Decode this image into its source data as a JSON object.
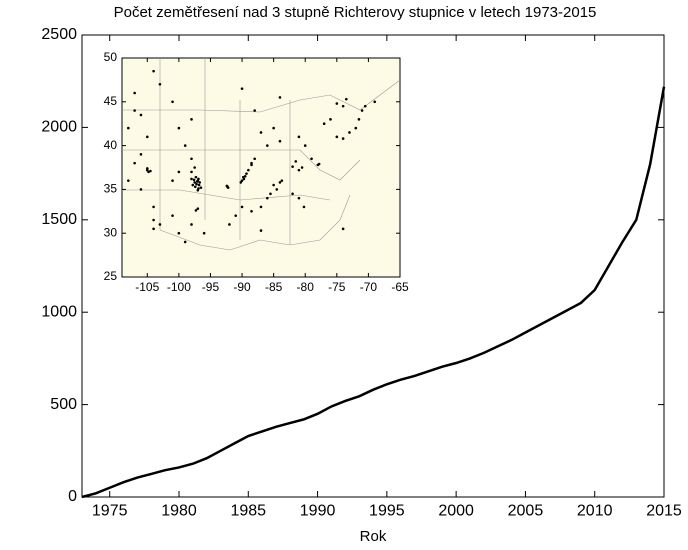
{
  "chart_data": [
    {
      "type": "line",
      "title": "Počet zemětřesení nad 3 stupně Richterovy stupnice v letech 1973-2015",
      "xlabel": "Rok",
      "color": "#000000",
      "x": [
        1973,
        1974,
        1975,
        1976,
        1977,
        1978,
        1979,
        1980,
        1981,
        1982,
        1983,
        1984,
        1985,
        1986,
        1987,
        1988,
        1989,
        1990,
        1991,
        1992,
        1993,
        1994,
        1995,
        1996,
        1997,
        1998,
        1999,
        2000,
        2001,
        2002,
        2003,
        2004,
        2005,
        2006,
        2007,
        2008,
        2009,
        2010,
        2011,
        2012,
        2013,
        2014,
        2015
      ],
      "values": [
        0,
        20,
        50,
        80,
        105,
        125,
        145,
        160,
        180,
        210,
        250,
        290,
        330,
        355,
        380,
        400,
        420,
        450,
        490,
        520,
        545,
        580,
        610,
        635,
        655,
        680,
        705,
        725,
        750,
        780,
        815,
        850,
        890,
        930,
        970,
        1010,
        1050,
        1120,
        1250,
        1380,
        1500,
        1800,
        2220
      ],
      "xlim": [
        1973,
        2015
      ],
      "xticks": [
        1975,
        1980,
        1985,
        1990,
        1995,
        2000,
        2005,
        2010,
        2015
      ],
      "ylim": [
        0,
        2500
      ],
      "yticks": [
        0,
        500,
        1000,
        1500,
        2000,
        2500
      ]
    },
    {
      "type": "scatter",
      "color": "#000000",
      "x": [
        -107,
        -106,
        -108,
        -105,
        -106,
        -105,
        -104.8,
        -104.5,
        -105,
        -107,
        -108,
        -106,
        -104,
        -103,
        -104,
        -107,
        -104,
        -103,
        -101,
        -100,
        -98,
        -99,
        -98,
        -97.5,
        -98,
        -100,
        -101,
        -97.5,
        -97.2,
        -97,
        -96.8,
        -97.4,
        -96.9,
        -97.1,
        -96.7,
        -97.6,
        -97,
        -96.5,
        -97.3,
        -98,
        -96.9,
        -97.8,
        -97,
        -97.3,
        -98,
        -99,
        -96,
        -101,
        -104,
        -100,
        -92.3,
        -92.2,
        -92.4,
        -89.5,
        -89.7,
        -90,
        -89.3,
        -89,
        -88.5,
        -90.2,
        -89.8,
        -88,
        -88.5,
        -91,
        -92,
        -90,
        -88.5,
        -85,
        -84,
        -83.7,
        -84.5,
        -85.5,
        -86,
        -87,
        -78,
        -77.8,
        -81,
        -80.5,
        -79,
        -82,
        -81.5,
        -84,
        -81,
        -80,
        -86,
        -87,
        -85,
        -80.2,
        -81,
        -82,
        -74,
        -75,
        -73,
        -72,
        -71.5,
        -71,
        -70.5,
        -69,
        -74,
        -75,
        -73.5,
        -76,
        -77,
        -74,
        -87,
        -84,
        -88,
        -90
      ],
      "y": [
        44,
        43.5,
        42,
        41,
        39,
        37.2,
        37,
        37.1,
        37.4,
        38,
        36,
        35,
        33,
        31,
        30.5,
        46,
        48.5,
        47,
        45,
        42,
        43,
        40,
        38.5,
        37.5,
        37,
        37,
        36,
        35.8,
        35.6,
        36,
        35.5,
        35.3,
        36.2,
        35.9,
        35.8,
        36.1,
        34.9,
        35.2,
        36.4,
        36.2,
        35.1,
        35.5,
        32.8,
        32.6,
        31,
        29,
        30,
        32,
        31.5,
        30,
        35.3,
        35.2,
        35.4,
        36.5,
        36.2,
        36,
        36.8,
        37.2,
        37.8,
        35.8,
        36.4,
        38.5,
        38,
        32,
        31,
        33,
        32.5,
        35.5,
        35.8,
        36,
        35,
        34.5,
        34,
        33,
        37.8,
        37.9,
        37.2,
        37.5,
        38.5,
        37.6,
        38.2,
        40.5,
        41,
        40,
        40,
        41.5,
        42,
        33,
        34,
        34.5,
        40.8,
        41,
        41.5,
        42,
        43,
        44,
        44.5,
        45,
        44.5,
        44.8,
        45.3,
        43,
        42.5,
        30.5,
        30.3,
        45.5,
        44,
        46.5
      ],
      "xlim": [
        -109,
        -65
      ],
      "xticks": [
        -105,
        -100,
        -95,
        -90,
        -85,
        -80,
        -75,
        -70,
        -65
      ],
      "ylim": [
        25,
        50
      ],
      "yticks": [
        25,
        30,
        35,
        40,
        45,
        50
      ]
    }
  ]
}
